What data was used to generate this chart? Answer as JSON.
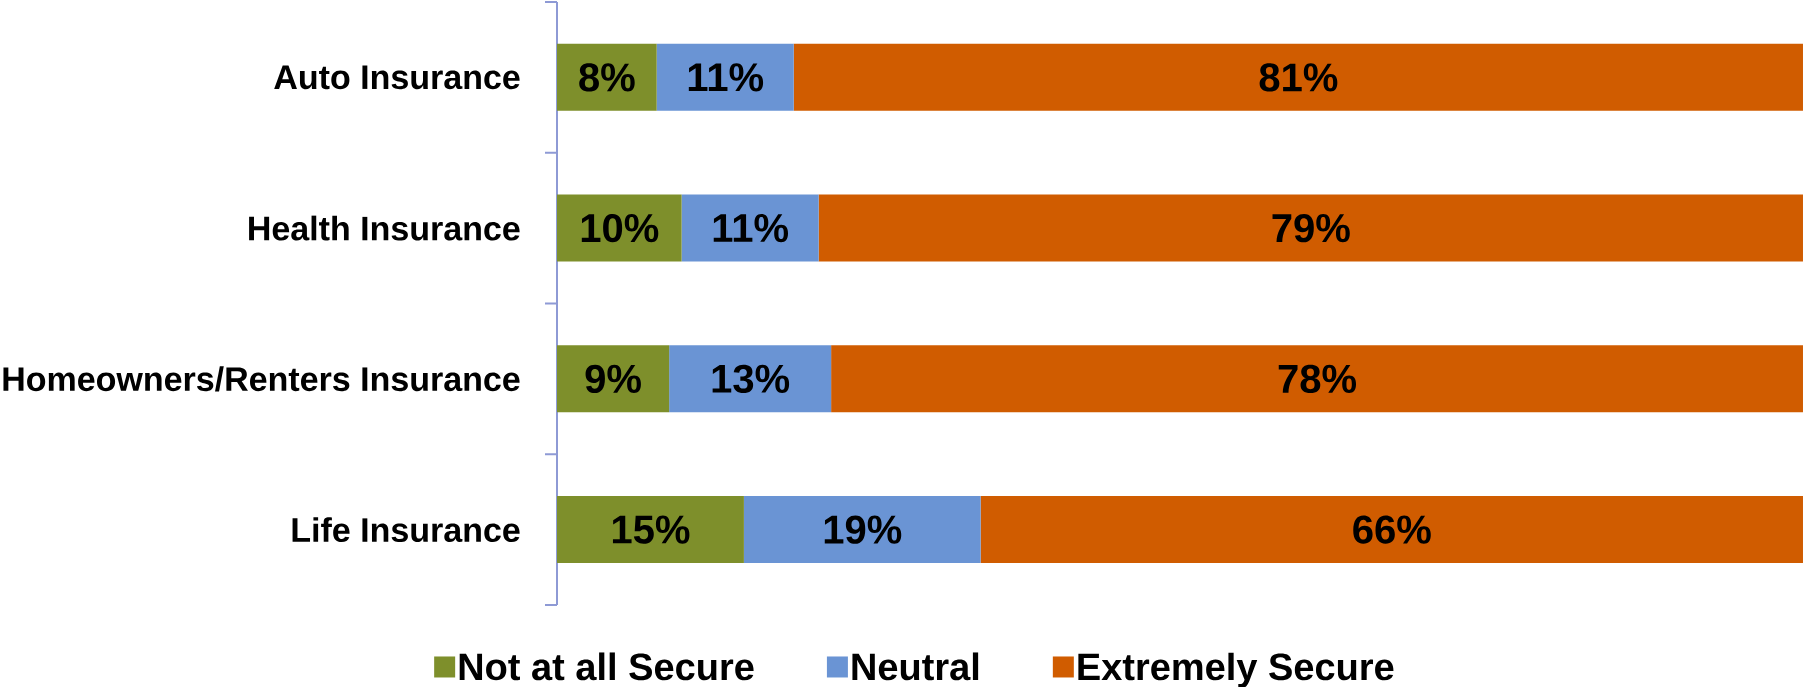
{
  "chart_data": {
    "type": "bar",
    "orientation": "horizontal",
    "stacked": true,
    "categories": [
      "Auto Insurance",
      "Health Insurance",
      "Homeowners/Renters Insurance",
      "Life Insurance"
    ],
    "series": [
      {
        "name": "Not at all Secure",
        "color": "#7e8f2b",
        "values": [
          8,
          10,
          9,
          15
        ],
        "value_labels": [
          "8%",
          "10%",
          "9%",
          "15%"
        ]
      },
      {
        "name": "Neutral",
        "color": "#6a94d4",
        "values": [
          11,
          11,
          13,
          19
        ],
        "value_labels": [
          "11%",
          "11%",
          "13%",
          "19%"
        ]
      },
      {
        "name": "Extremely Secure",
        "color": "#d05c00",
        "values": [
          81,
          79,
          78,
          66
        ],
        "value_labels": [
          "81%",
          "79%",
          "78%",
          "66%"
        ]
      }
    ],
    "legend": "bottom"
  }
}
